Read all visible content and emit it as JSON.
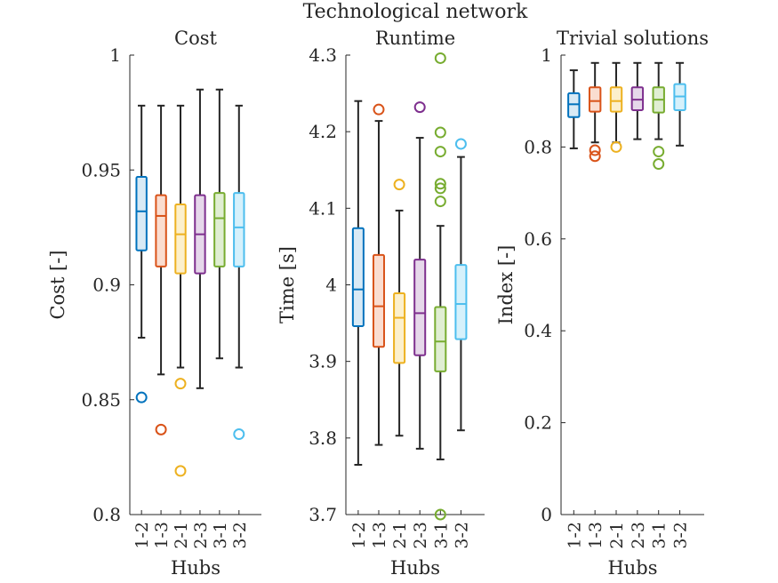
{
  "figure_title": "Technological network",
  "box_colors": [
    "#0072BD",
    "#D95319",
    "#EDB120",
    "#7E2F8E",
    "#77AC30",
    "#4DBEEE"
  ],
  "box_fills": [
    "#D9EAF5",
    "#FADDD0",
    "#FCF0CC",
    "#E6D8EA",
    "#E0EED3",
    "#D6F1FB"
  ],
  "chart_data": [
    {
      "type": "box",
      "title": "Cost",
      "xlabel": "Hubs",
      "ylabel": "Cost [-]",
      "ylim": [
        0.8,
        1.0
      ],
      "yticks": [
        "0.8",
        "0.85",
        "0.9",
        "0.95",
        "1"
      ],
      "categories": [
        "1-2",
        "1-3",
        "2-1",
        "2-3",
        "3-1",
        "3-2"
      ],
      "boxes": [
        {
          "whisker_low": 0.877,
          "q1": 0.915,
          "median": 0.932,
          "q3": 0.947,
          "whisker_high": 0.978,
          "outliers": [
            0.851
          ]
        },
        {
          "whisker_low": 0.861,
          "q1": 0.908,
          "median": 0.93,
          "q3": 0.939,
          "whisker_high": 0.978,
          "outliers": [
            0.837
          ]
        },
        {
          "whisker_low": 0.864,
          "q1": 0.905,
          "median": 0.922,
          "q3": 0.935,
          "whisker_high": 0.978,
          "outliers": [
            0.857,
            0.819
          ]
        },
        {
          "whisker_low": 0.855,
          "q1": 0.905,
          "median": 0.922,
          "q3": 0.939,
          "whisker_high": 0.985,
          "outliers": []
        },
        {
          "whisker_low": 0.868,
          "q1": 0.908,
          "median": 0.929,
          "q3": 0.94,
          "whisker_high": 0.985,
          "outliers": []
        },
        {
          "whisker_low": 0.864,
          "q1": 0.908,
          "median": 0.925,
          "q3": 0.94,
          "whisker_high": 0.978,
          "outliers": [
            0.835
          ]
        }
      ]
    },
    {
      "type": "box",
      "title": "Runtime",
      "xlabel": "Hubs",
      "ylabel": "Time [s]",
      "ylim": [
        3.7,
        4.3
      ],
      "yticks": [
        "3.7",
        "3.8",
        "3.9",
        "4",
        "4.1",
        "4.2",
        "4.3"
      ],
      "categories": [
        "1-2",
        "1-3",
        "2-1",
        "2-3",
        "3-1",
        "3-2"
      ],
      "boxes": [
        {
          "whisker_low": 3.765,
          "q1": 3.946,
          "median": 3.994,
          "q3": 4.074,
          "whisker_high": 4.24,
          "outliers": []
        },
        {
          "whisker_low": 3.791,
          "q1": 3.919,
          "median": 3.972,
          "q3": 4.039,
          "whisker_high": 4.214,
          "outliers": [
            4.229
          ]
        },
        {
          "whisker_low": 3.803,
          "q1": 3.898,
          "median": 3.957,
          "q3": 3.989,
          "whisker_high": 4.097,
          "outliers": [
            4.131
          ]
        },
        {
          "whisker_low": 3.786,
          "q1": 3.908,
          "median": 3.963,
          "q3": 4.033,
          "whisker_high": 4.192,
          "outliers": [
            4.232
          ]
        },
        {
          "whisker_low": 3.772,
          "q1": 3.887,
          "median": 3.926,
          "q3": 3.971,
          "whisker_high": 4.077,
          "outliers": [
            4.296,
            4.199,
            4.174,
            4.132,
            4.126,
            4.109,
            3.7
          ]
        },
        {
          "whisker_low": 3.81,
          "q1": 3.929,
          "median": 3.975,
          "q3": 4.026,
          "whisker_high": 4.167,
          "outliers": [
            4.184
          ]
        }
      ]
    },
    {
      "type": "box",
      "title": "Trivial solutions",
      "xlabel": "Hubs",
      "ylabel": "Index [-]",
      "ylim": [
        0,
        1
      ],
      "yticks": [
        "0",
        "0.2",
        "0.4",
        "0.6",
        "0.8",
        "1"
      ],
      "categories": [
        "1-2",
        "1-3",
        "2-1",
        "2-3",
        "3-1",
        "3-2"
      ],
      "boxes": [
        {
          "whisker_low": 0.797,
          "q1": 0.865,
          "median": 0.893,
          "q3": 0.917,
          "whisker_high": 0.967,
          "outliers": []
        },
        {
          "whisker_low": 0.81,
          "q1": 0.877,
          "median": 0.9,
          "q3": 0.93,
          "whisker_high": 0.983,
          "outliers": [
            0.793,
            0.78
          ]
        },
        {
          "whisker_low": 0.81,
          "q1": 0.877,
          "median": 0.9,
          "q3": 0.93,
          "whisker_high": 0.983,
          "outliers": [
            0.8
          ]
        },
        {
          "whisker_low": 0.817,
          "q1": 0.88,
          "median": 0.903,
          "q3": 0.93,
          "whisker_high": 0.983,
          "outliers": []
        },
        {
          "whisker_low": 0.817,
          "q1": 0.875,
          "median": 0.903,
          "q3": 0.93,
          "whisker_high": 0.983,
          "outliers": [
            0.79,
            0.763
          ]
        },
        {
          "whisker_low": 0.803,
          "q1": 0.88,
          "median": 0.91,
          "q3": 0.937,
          "whisker_high": 0.983,
          "outliers": []
        }
      ]
    }
  ]
}
